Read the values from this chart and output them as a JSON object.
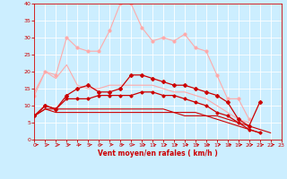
{
  "x": [
    0,
    1,
    2,
    3,
    4,
    5,
    6,
    7,
    8,
    9,
    10,
    11,
    12,
    13,
    14,
    15,
    16,
    17,
    18,
    19,
    20,
    21,
    22,
    23
  ],
  "series": [
    {
      "color": "#ffaaaa",
      "linewidth": 0.8,
      "marker": "o",
      "markersize": 2.0,
      "values": [
        13,
        20,
        19,
        30,
        27,
        26,
        26,
        32,
        40,
        40,
        33,
        29,
        30,
        29,
        31,
        27,
        26,
        19,
        12,
        12,
        6,
        null,
        null,
        null
      ]
    },
    {
      "color": "#ffaaaa",
      "linewidth": 0.8,
      "marker": null,
      "markersize": 0,
      "values": [
        14,
        20,
        18,
        22,
        16,
        15,
        15,
        16,
        16,
        16,
        16,
        16,
        15,
        14,
        14,
        13,
        12,
        10,
        8,
        6,
        5,
        null,
        null,
        null
      ]
    },
    {
      "color": "#cc0000",
      "linewidth": 0.9,
      "marker": "D",
      "markersize": 2.0,
      "values": [
        7,
        10,
        9,
        13,
        15,
        16,
        14,
        14,
        15,
        19,
        19,
        18,
        17,
        16,
        16,
        15,
        14,
        13,
        11,
        6,
        4,
        11,
        null,
        null
      ]
    },
    {
      "color": "#cc0000",
      "linewidth": 0.9,
      "marker": "P",
      "markersize": 2.0,
      "values": [
        7,
        10,
        9,
        12,
        12,
        12,
        13,
        13,
        13,
        13,
        14,
        14,
        13,
        13,
        12,
        11,
        10,
        8,
        7,
        5,
        3,
        2,
        null,
        null
      ]
    },
    {
      "color": "#cc0000",
      "linewidth": 0.8,
      "marker": null,
      "markersize": 0,
      "values": [
        7,
        9,
        9,
        9,
        9,
        9,
        9,
        9,
        9,
        9,
        9,
        9,
        9,
        8,
        8,
        8,
        7,
        7,
        6,
        5,
        4,
        3,
        2,
        null
      ]
    },
    {
      "color": "#cc0000",
      "linewidth": 0.8,
      "marker": null,
      "markersize": 0,
      "values": [
        7,
        9,
        8,
        8,
        8,
        8,
        8,
        8,
        8,
        8,
        8,
        8,
        8,
        8,
        7,
        7,
        7,
        6,
        5,
        4,
        3,
        2,
        null,
        null
      ]
    }
  ],
  "xlabel": "Vent moyen/en rafales ( km/h )",
  "xlim": [
    0,
    23
  ],
  "ylim": [
    0,
    40
  ],
  "yticks": [
    0,
    5,
    10,
    15,
    20,
    25,
    30,
    35,
    40
  ],
  "xticks": [
    0,
    1,
    2,
    3,
    4,
    5,
    6,
    7,
    8,
    9,
    10,
    11,
    12,
    13,
    14,
    15,
    16,
    17,
    18,
    19,
    20,
    21,
    22,
    23
  ],
  "bg_color": "#cceeff",
  "grid_color": "#ffffff",
  "axis_color": "#cc0000",
  "tick_color": "#cc0000",
  "label_color": "#cc0000"
}
